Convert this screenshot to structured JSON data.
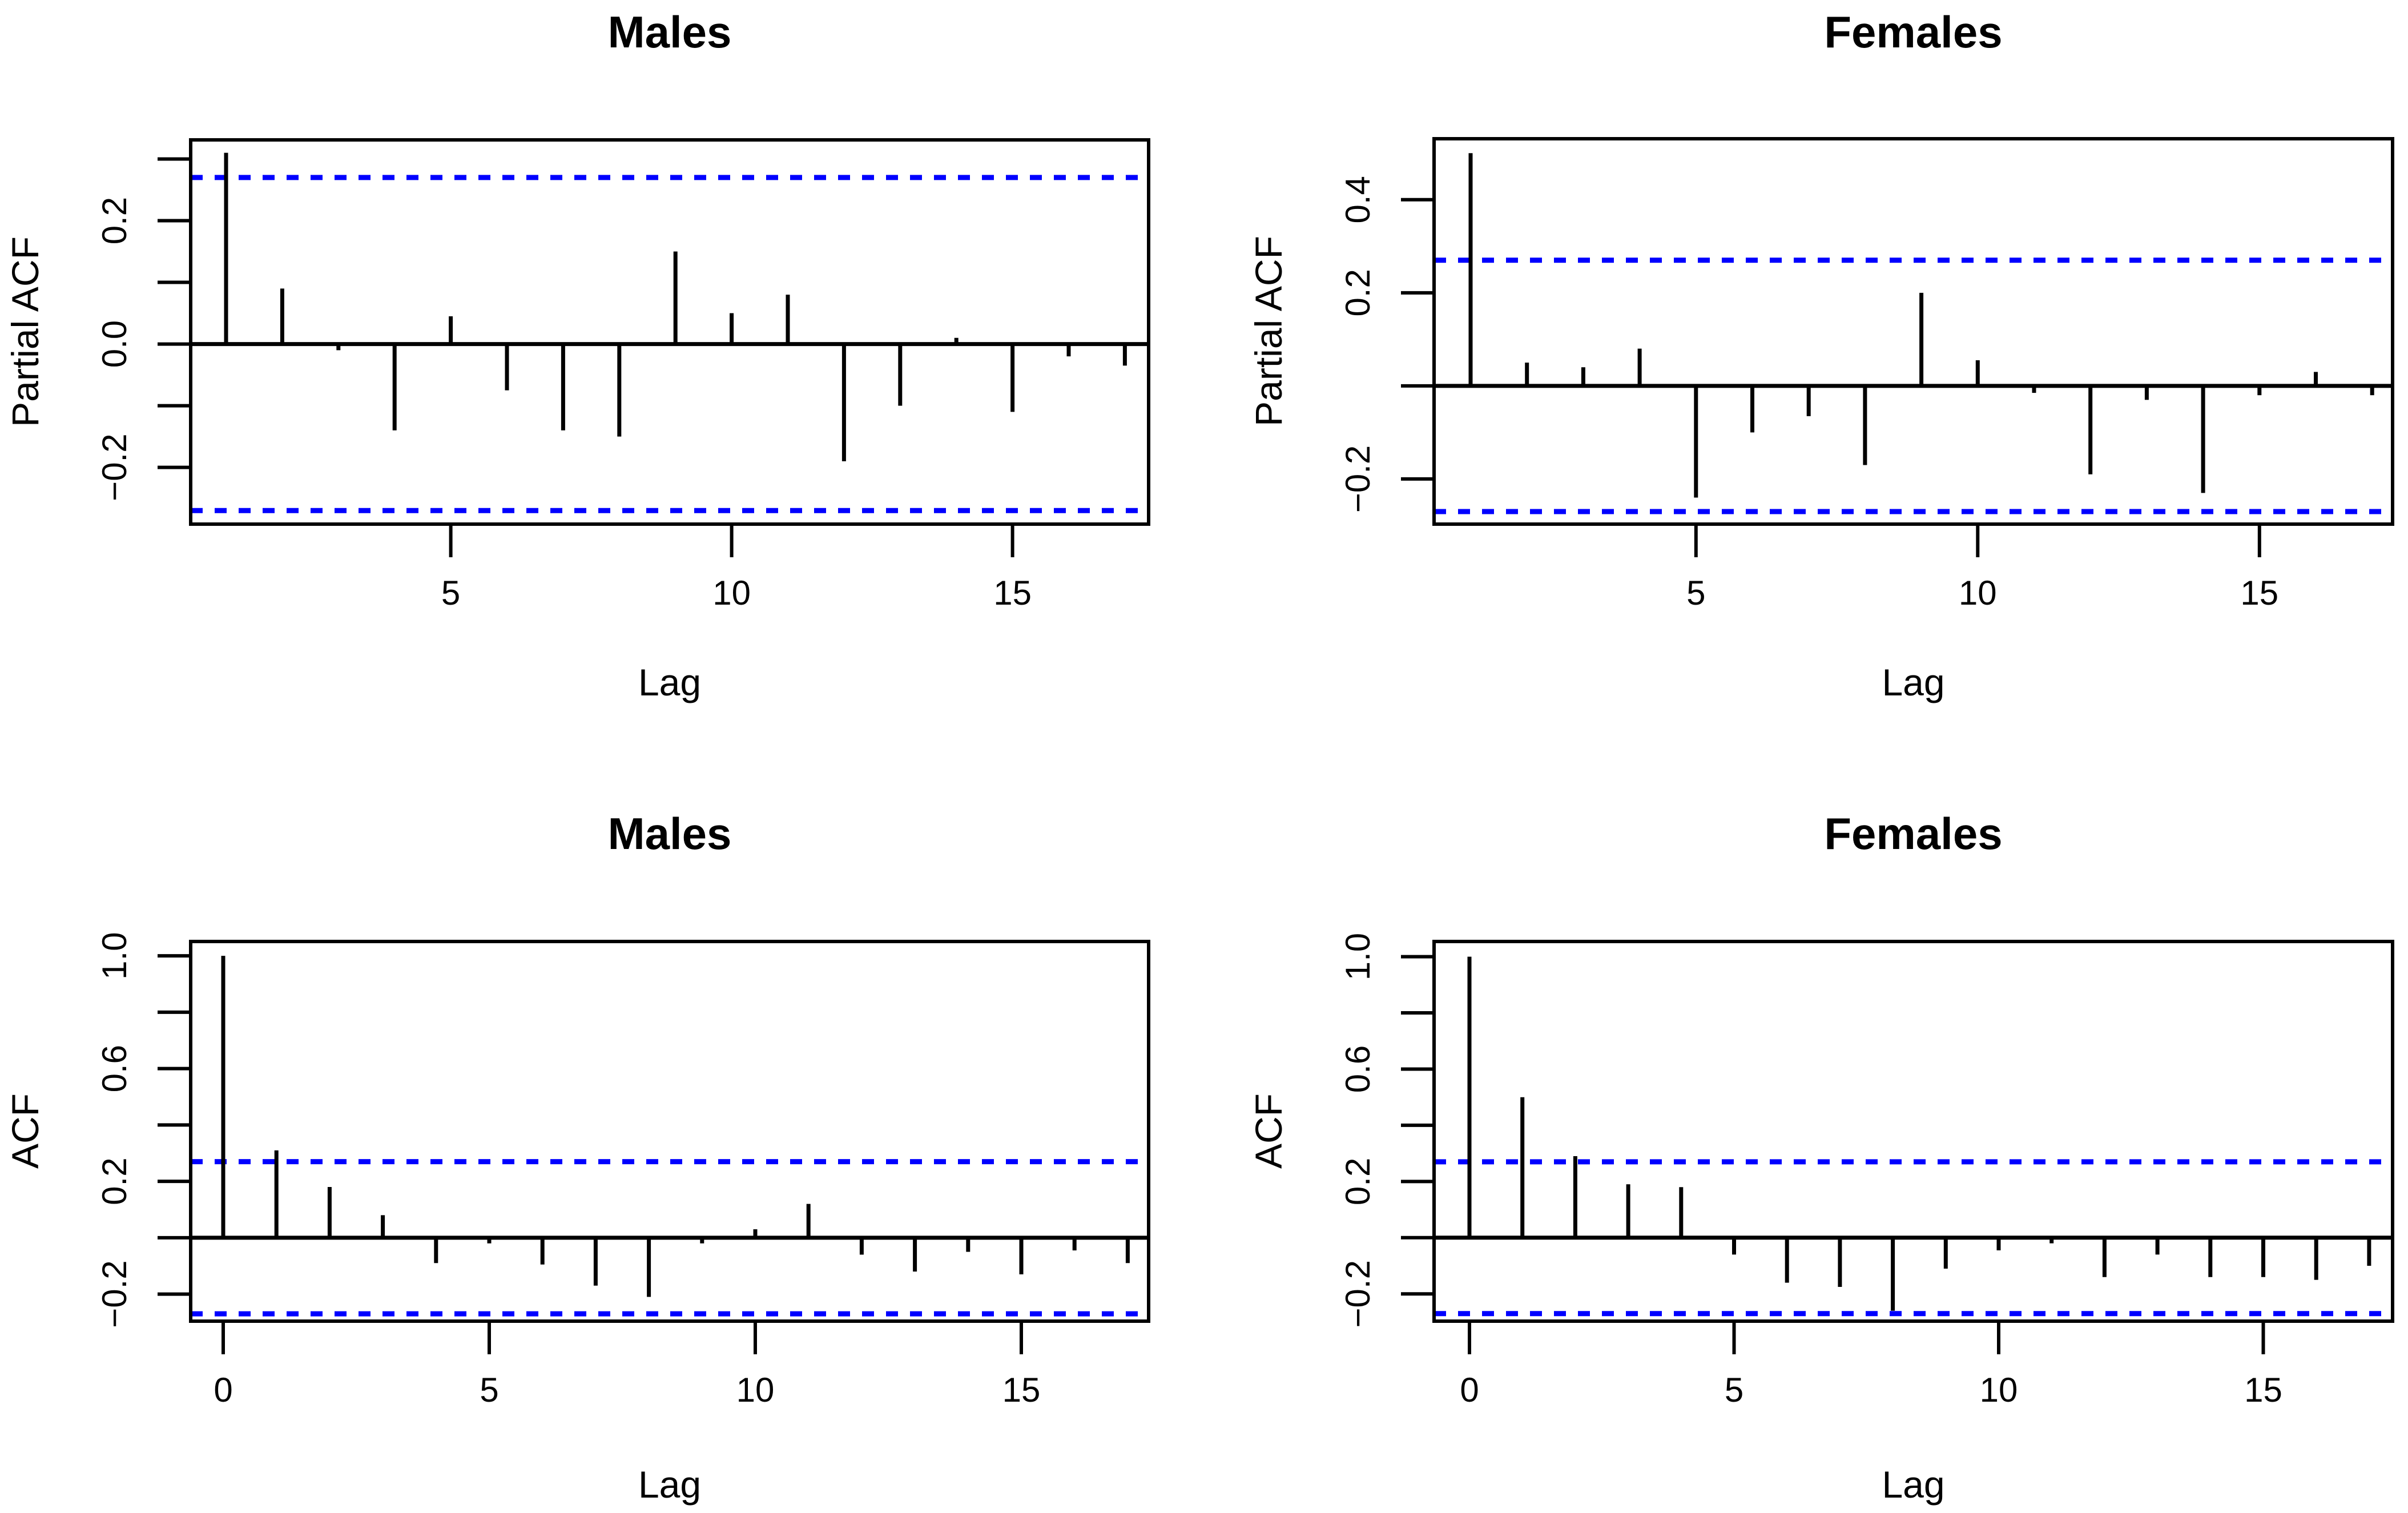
{
  "page": {
    "background": "#ffffff"
  },
  "colors": {
    "axis": "#000000",
    "bars": "#000000",
    "confidence_band": "#0000FF"
  },
  "chart_data": [
    {
      "id": "males-pacf",
      "type": "bar",
      "title": "Males",
      "xlabel": "Lag",
      "ylabel": "Partial ACF",
      "grid": "off",
      "legend": "none",
      "bar_style": "vertical-needle",
      "confidence_lines": [
        0.27,
        -0.27
      ],
      "confidence_style": "dashed-blue",
      "lags": [
        1,
        2,
        3,
        4,
        5,
        6,
        7,
        8,
        9,
        10,
        11,
        12,
        13,
        14,
        15,
        16,
        17
      ],
      "values": [
        0.31,
        0.09,
        -0.01,
        -0.14,
        0.045,
        -0.075,
        -0.14,
        -0.15,
        0.15,
        0.05,
        0.08,
        -0.19,
        -0.1,
        0.01,
        -0.11,
        -0.02,
        -0.035
      ],
      "xlim": [
        0.36,
        17.64
      ],
      "ylim": [
        -0.29,
        0.33
      ],
      "x_ticks": [
        {
          "v": 5,
          "label": "5"
        },
        {
          "v": 10,
          "label": "10"
        },
        {
          "v": 15,
          "label": "15"
        }
      ],
      "y_ticks": [
        {
          "v": 0.3,
          "label": ""
        },
        {
          "v": 0.2,
          "label": "0.2"
        },
        {
          "v": 0.1,
          "label": ""
        },
        {
          "v": 0.0,
          "label": "0.0"
        },
        {
          "v": -0.1,
          "label": ""
        },
        {
          "v": -0.2,
          "label": "−0.2"
        }
      ]
    },
    {
      "id": "females-pacf",
      "type": "bar",
      "title": "Females",
      "xlabel": "Lag",
      "ylabel": "Partial ACF",
      "grid": "off",
      "legend": "none",
      "bar_style": "vertical-needle",
      "confidence_lines": [
        0.27,
        -0.27
      ],
      "confidence_style": "dashed-blue",
      "lags": [
        1,
        2,
        3,
        4,
        5,
        6,
        7,
        8,
        9,
        10,
        11,
        12,
        13,
        14,
        15,
        16,
        17
      ],
      "values": [
        0.5,
        0.05,
        0.04,
        0.08,
        -0.24,
        -0.1,
        -0.065,
        -0.17,
        0.2,
        0.055,
        -0.015,
        -0.19,
        -0.03,
        -0.23,
        -0.02,
        0.03,
        -0.02
      ],
      "xlim": [
        0.36,
        17.64
      ],
      "ylim": [
        -0.3,
        0.53
      ],
      "x_ticks": [
        {
          "v": 5,
          "label": "5"
        },
        {
          "v": 10,
          "label": "10"
        },
        {
          "v": 15,
          "label": "15"
        }
      ],
      "y_ticks": [
        {
          "v": 0.4,
          "label": "0.4"
        },
        {
          "v": 0.2,
          "label": "0.2"
        },
        {
          "v": 0.0,
          "label": ""
        },
        {
          "v": -0.2,
          "label": "−0.2"
        }
      ]
    },
    {
      "id": "males-acf",
      "type": "bar",
      "title": "Males",
      "xlabel": "Lag",
      "ylabel": "ACF",
      "grid": "off",
      "legend": "none",
      "bar_style": "vertical-needle",
      "confidence_lines": [
        0.27,
        -0.27
      ],
      "confidence_style": "dashed-blue",
      "lags": [
        0,
        1,
        2,
        3,
        4,
        5,
        6,
        7,
        8,
        9,
        10,
        11,
        12,
        13,
        14,
        15,
        16,
        17
      ],
      "values": [
        1.0,
        0.31,
        0.18,
        0.08,
        -0.09,
        -0.02,
        -0.095,
        -0.17,
        -0.21,
        -0.02,
        0.03,
        0.12,
        -0.06,
        -0.12,
        -0.05,
        -0.13,
        -0.045,
        -0.09
      ],
      "xlim": [
        -0.68,
        17.68
      ],
      "ylim": [
        -0.3,
        1.05
      ],
      "x_ticks": [
        {
          "v": 0,
          "label": "0"
        },
        {
          "v": 5,
          "label": "5"
        },
        {
          "v": 10,
          "label": "10"
        },
        {
          "v": 15,
          "label": "15"
        }
      ],
      "y_ticks": [
        {
          "v": 1.0,
          "label": "1.0"
        },
        {
          "v": 0.8,
          "label": ""
        },
        {
          "v": 0.6,
          "label": "0.6"
        },
        {
          "v": 0.4,
          "label": ""
        },
        {
          "v": 0.2,
          "label": "0.2"
        },
        {
          "v": 0.0,
          "label": ""
        },
        {
          "v": -0.2,
          "label": "−0.2"
        }
      ]
    },
    {
      "id": "females-acf",
      "type": "bar",
      "title": "Females",
      "xlabel": "Lag",
      "ylabel": "ACF",
      "grid": "off",
      "legend": "none",
      "bar_style": "vertical-needle",
      "confidence_lines": [
        0.27,
        -0.27
      ],
      "confidence_style": "dashed-blue",
      "lags": [
        0,
        1,
        2,
        3,
        4,
        5,
        6,
        7,
        8,
        9,
        10,
        11,
        12,
        13,
        14,
        15,
        16,
        17
      ],
      "values": [
        1.0,
        0.5,
        0.29,
        0.19,
        0.18,
        -0.06,
        -0.16,
        -0.175,
        -0.26,
        -0.11,
        -0.045,
        -0.02,
        -0.14,
        -0.06,
        -0.14,
        -0.14,
        -0.15,
        -0.1
      ],
      "xlim": [
        -0.68,
        17.68
      ],
      "ylim": [
        -0.3,
        1.05
      ],
      "x_ticks": [
        {
          "v": 0,
          "label": "0"
        },
        {
          "v": 5,
          "label": "5"
        },
        {
          "v": 10,
          "label": "10"
        },
        {
          "v": 15,
          "label": "15"
        }
      ],
      "y_ticks": [
        {
          "v": 1.0,
          "label": "1.0"
        },
        {
          "v": 0.8,
          "label": ""
        },
        {
          "v": 0.6,
          "label": "0.6"
        },
        {
          "v": 0.4,
          "label": ""
        },
        {
          "v": 0.2,
          "label": "0.2"
        },
        {
          "v": 0.0,
          "label": ""
        },
        {
          "v": -0.2,
          "label": "−0.2"
        }
      ]
    }
  ]
}
